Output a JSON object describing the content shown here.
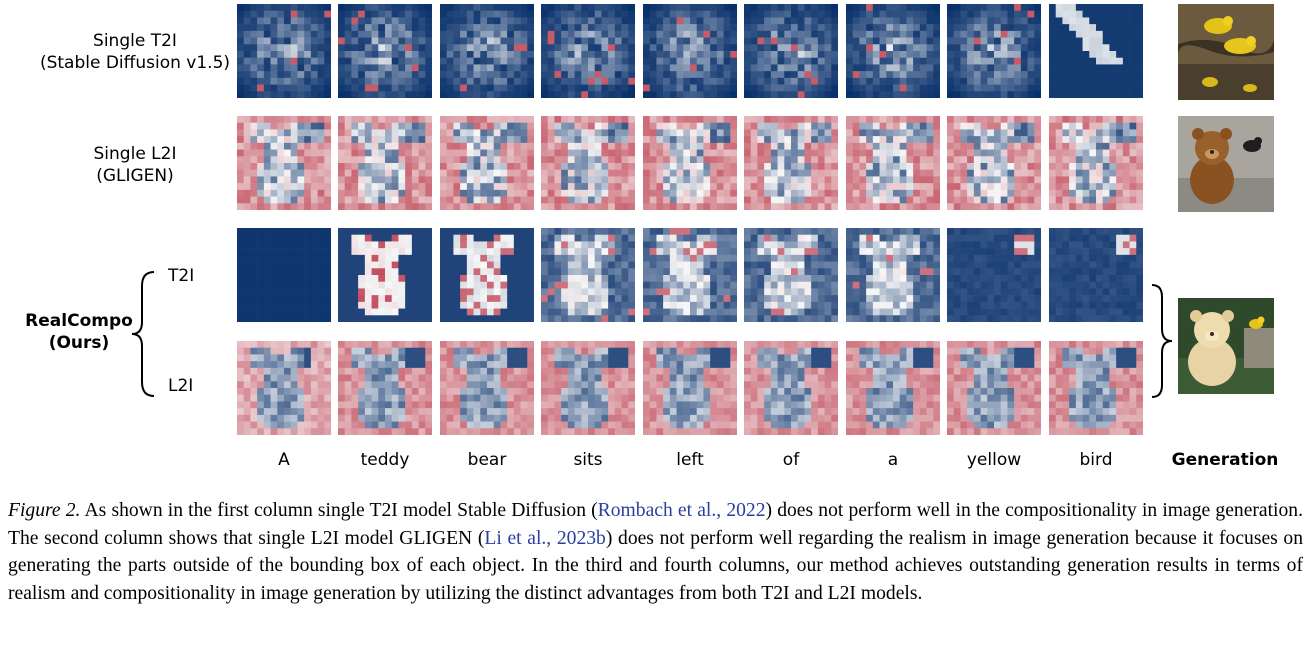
{
  "row_labels": {
    "t2i": "Single T2I\n(Stable Diffusion v1.5)",
    "l2i": "Single L2I\n(GLIGEN)",
    "ours_line1": "RealCompo",
    "ours_line2": "(Ours)",
    "ours_t2i": "T2I",
    "ours_l2i": "L2I"
  },
  "tokens": [
    "A",
    "teddy",
    "bear",
    "sits",
    "left",
    "of",
    "a",
    "yellow",
    "bird"
  ],
  "generation_label": "Generation",
  "caption": {
    "fig_label": "Figure 2.",
    "p1": " As shown in the first column single T2I model Stable Diffusion (",
    "cite1_name": "Rombach et al.",
    "cite1_sep": ", ",
    "cite1_year": "2022",
    "p2": ") does not perform well in the compositionality in image generation. The second column shows that single L2I model GLIGEN (",
    "cite2_name": "Li et al.",
    "cite2_sep": ", ",
    "cite2_year": "2023b",
    "p3": ") does not perform well regarding the realism in image generation because it focuses on generating the parts outside of the bounding box of each object. In the third and fourth columns, our method achieves outstanding generation results in terms of realism and compositionality in image generation by utilizing the distinct advantages from both T2I and L2I models."
  },
  "colors": {
    "blue": "#08306b",
    "red": "#b2182b",
    "white": "#f7f7f7",
    "cite": "#2b3fa0"
  },
  "generations": [
    {
      "name": "yellow-birds-image"
    },
    {
      "name": "teddy-bear-black-bird-image"
    },
    {
      "name": "teddy-bear-yellow-bird-image"
    }
  ]
}
